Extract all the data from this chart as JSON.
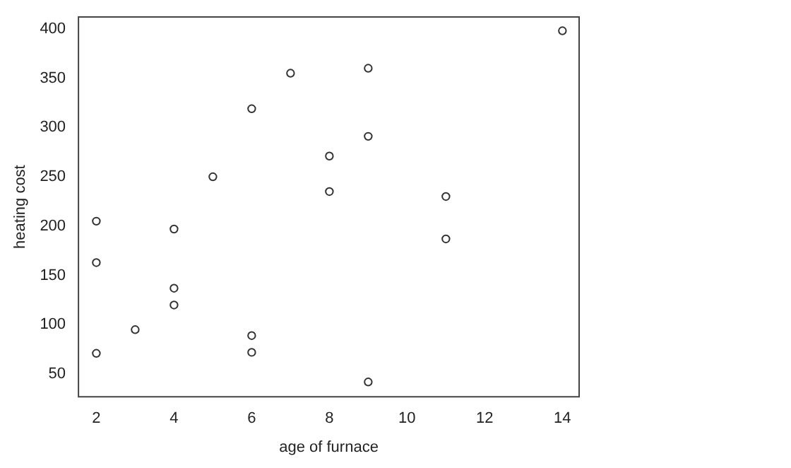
{
  "chart_data": {
    "type": "scatter",
    "xlabel": "age of furnace",
    "ylabel": "heating cost",
    "x": [
      2,
      2,
      2,
      3,
      4,
      4,
      4,
      5,
      6,
      6,
      6,
      7,
      8,
      8,
      9,
      9,
      9,
      11,
      11,
      14
    ],
    "values": [
      205,
      163,
      71,
      95,
      197,
      137,
      120,
      250,
      319,
      89,
      72,
      355,
      271,
      235,
      360,
      291,
      42,
      230,
      187,
      398
    ],
    "color": "#333333",
    "marker": "circle",
    "xlim": [
      1.54,
      14.43
    ],
    "xticks": [
      2,
      4,
      6,
      8,
      10,
      12,
      14
    ],
    "ylim": [
      27,
      412
    ],
    "yticks": [
      50,
      100,
      150,
      200,
      250,
      300,
      350,
      400
    ],
    "grid": false,
    "legend": false
  }
}
